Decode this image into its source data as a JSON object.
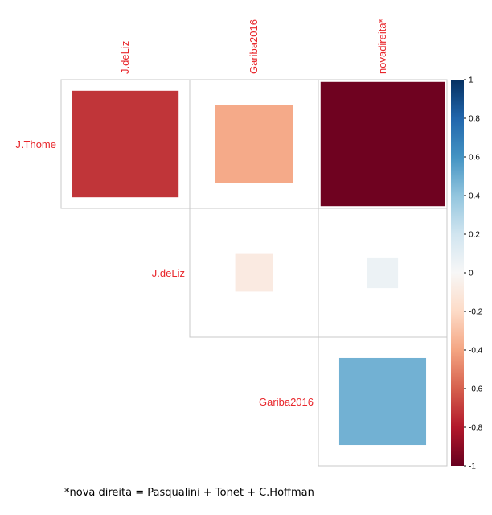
{
  "chart_data": {
    "type": "heatmap",
    "subtype": "correlation-upper-triangle",
    "columns": [
      "J.deLiz",
      "Gariba2016",
      "novadireita*"
    ],
    "rows": [
      "J.Thome",
      "J.deLiz",
      "Gariba2016"
    ],
    "label_color": "#e8262b",
    "cells": [
      {
        "row": "J.Thome",
        "column": "J.deLiz",
        "value": -0.72
      },
      {
        "row": "J.Thome",
        "column": "Gariba2016",
        "value": -0.38
      },
      {
        "row": "J.Thome",
        "column": "novadireita*",
        "value": -0.98
      },
      {
        "row": "J.deLiz",
        "column": "Gariba2016",
        "value": -0.09
      },
      {
        "row": "J.deLiz",
        "column": "novadireita*",
        "value": 0.06
      },
      {
        "row": "Gariba2016",
        "column": "novadireita*",
        "value": 0.48
      }
    ],
    "colorbar": {
      "range": [
        -1,
        1
      ],
      "ticks": [
        "1",
        "0.8",
        "0.6",
        "0.4",
        "0.2",
        "0",
        "-0.2",
        "-0.4",
        "-0.6",
        "-0.8",
        "-1"
      ]
    }
  },
  "footnote": "*nova direita = Pasqualini + Tonet + C.Hoffman"
}
